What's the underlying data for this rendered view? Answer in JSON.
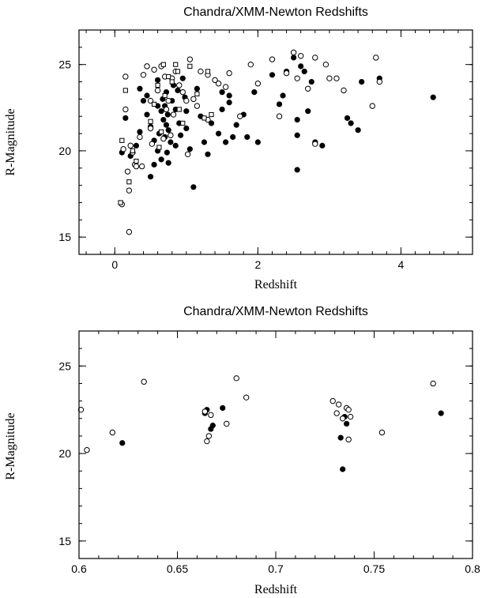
{
  "chart_data": [
    {
      "type": "scatter",
      "title": "Chandra/XMM-Newton Redshifts",
      "xlabel": "Redshift",
      "ylabel": "R-Magnitude",
      "xlim": [
        -0.5,
        5.0
      ],
      "ylim": [
        14.0,
        27.0
      ],
      "x_ticks": [
        0,
        2,
        4
      ],
      "y_ticks": [
        15,
        20,
        25
      ],
      "x_minor_step": 0.2,
      "y_minor_step": 1,
      "grid": false,
      "series": [
        {
          "marker": "filled-circle",
          "points": [
            [
              0.35,
              23.6
            ],
            [
              0.4,
              22.9
            ],
            [
              0.45,
              22.1
            ],
            [
              0.5,
              21.4
            ],
            [
              0.55,
              20.6
            ],
            [
              0.55,
              19.2
            ],
            [
              0.6,
              24.1
            ],
            [
              0.6,
              22.6
            ],
            [
              0.62,
              21.0
            ],
            [
              0.65,
              22.3
            ],
            [
              0.67,
              23.0
            ],
            [
              0.68,
              21.8
            ],
            [
              0.7,
              20.8
            ],
            [
              0.7,
              22.6
            ],
            [
              0.72,
              23.4
            ],
            [
              0.72,
              21.5
            ],
            [
              0.73,
              19.9
            ],
            [
              0.74,
              22.1
            ],
            [
              0.75,
              21.2
            ],
            [
              0.78,
              20.5
            ],
            [
              0.8,
              22.9
            ],
            [
              0.82,
              23.8
            ],
            [
              0.85,
              22.4
            ],
            [
              0.85,
              20.3
            ],
            [
              0.9,
              21.6
            ],
            [
              0.92,
              20.9
            ],
            [
              0.95,
              24.2
            ],
            [
              0.98,
              23.1
            ],
            [
              1.0,
              22.3
            ],
            [
              1.0,
              21.3
            ],
            [
              1.05,
              20.1
            ],
            [
              1.1,
              17.9
            ],
            [
              1.15,
              23.6
            ],
            [
              1.2,
              22.0
            ],
            [
              1.25,
              20.5
            ],
            [
              1.3,
              19.8
            ],
            [
              1.35,
              21.6
            ],
            [
              1.45,
              21.0
            ],
            [
              1.5,
              23.4
            ],
            [
              1.5,
              22.4
            ],
            [
              1.55,
              20.5
            ],
            [
              1.6,
              23.2
            ],
            [
              1.6,
              22.8
            ],
            [
              1.65,
              20.8
            ],
            [
              1.7,
              21.5
            ],
            [
              1.8,
              22.1
            ],
            [
              1.85,
              20.8
            ],
            [
              1.95,
              23.4
            ],
            [
              2.0,
              20.5
            ],
            [
              2.2,
              24.4
            ],
            [
              2.3,
              22.7
            ],
            [
              2.35,
              23.2
            ],
            [
              2.4,
              24.6
            ],
            [
              2.5,
              25.4
            ],
            [
              2.55,
              21.8
            ],
            [
              2.55,
              20.9
            ],
            [
              2.55,
              18.9
            ],
            [
              2.6,
              24.9
            ],
            [
              2.65,
              24.6
            ],
            [
              2.7,
              22.3
            ],
            [
              2.75,
              24.0
            ],
            [
              2.8,
              20.5
            ],
            [
              2.9,
              20.3
            ],
            [
              3.25,
              21.9
            ],
            [
              3.3,
              21.6
            ],
            [
              3.4,
              21.2
            ],
            [
              3.45,
              24.0
            ],
            [
              3.7,
              24.2
            ],
            [
              4.45,
              23.1
            ],
            [
              0.1,
              19.9
            ],
            [
              0.15,
              21.9
            ],
            [
              0.22,
              19.7
            ],
            [
              0.3,
              20.3
            ],
            [
              0.35,
              21.1
            ],
            [
              0.45,
              23.2
            ],
            [
              0.5,
              18.5
            ],
            [
              0.6,
              20.0
            ],
            [
              0.65,
              19.5
            ],
            [
              0.75,
              19.3
            ],
            [
              0.88,
              23.5
            ]
          ]
        },
        {
          "marker": "open-circle",
          "points": [
            [
              0.1,
              16.9
            ],
            [
              0.15,
              22.4
            ],
            [
              0.15,
              24.3
            ],
            [
              0.18,
              18.8
            ],
            [
              0.2,
              17.7
            ],
            [
              0.2,
              15.3
            ],
            [
              0.22,
              20.3
            ],
            [
              0.25,
              19.9
            ],
            [
              0.28,
              19.2
            ],
            [
              0.3,
              19.1
            ],
            [
              0.35,
              20.8
            ],
            [
              0.38,
              19.1
            ],
            [
              0.4,
              24.4
            ],
            [
              0.45,
              24.9
            ],
            [
              0.5,
              22.9
            ],
            [
              0.5,
              21.3
            ],
            [
              0.52,
              20.4
            ],
            [
              0.55,
              24.7
            ],
            [
              0.6,
              23.5
            ],
            [
              0.65,
              24.9
            ],
            [
              0.68,
              20.7
            ],
            [
              0.7,
              24.3
            ],
            [
              0.72,
              22.4
            ],
            [
              0.75,
              22.9
            ],
            [
              0.78,
              20.9
            ],
            [
              0.8,
              24.2
            ],
            [
              0.82,
              22.1
            ],
            [
              0.85,
              24.6
            ],
            [
              0.9,
              23.8
            ],
            [
              0.95,
              23.4
            ],
            [
              1.0,
              22.9
            ],
            [
              1.02,
              19.8
            ],
            [
              1.05,
              25.3
            ],
            [
              1.1,
              23.0
            ],
            [
              1.15,
              22.6
            ],
            [
              1.2,
              24.6
            ],
            [
              1.3,
              21.8
            ],
            [
              1.3,
              24.4
            ],
            [
              1.4,
              24.1
            ],
            [
              1.45,
              23.9
            ],
            [
              1.55,
              23.7
            ],
            [
              1.6,
              24.5
            ],
            [
              1.75,
              22.0
            ],
            [
              1.9,
              25.0
            ],
            [
              2.0,
              23.9
            ],
            [
              2.2,
              25.3
            ],
            [
              2.3,
              22.0
            ],
            [
              2.4,
              24.5
            ],
            [
              2.5,
              25.7
            ],
            [
              2.55,
              24.2
            ],
            [
              2.6,
              25.5
            ],
            [
              2.7,
              23.6
            ],
            [
              2.8,
              25.4
            ],
            [
              2.8,
              20.4
            ],
            [
              2.95,
              25.0
            ],
            [
              3.0,
              24.2
            ],
            [
              3.1,
              24.2
            ],
            [
              3.2,
              23.5
            ],
            [
              3.6,
              22.6
            ],
            [
              3.65,
              25.4
            ],
            [
              3.7,
              24.0
            ],
            [
              0.12,
              20.1
            ]
          ]
        },
        {
          "marker": "open-square",
          "points": [
            [
              0.08,
              17.0
            ],
            [
              0.1,
              20.6
            ],
            [
              0.15,
              23.5
            ],
            [
              0.2,
              18.2
            ],
            [
              0.25,
              20.0
            ],
            [
              0.3,
              19.4
            ],
            [
              0.5,
              21.7
            ],
            [
              0.55,
              22.7
            ],
            [
              0.6,
              23.8
            ],
            [
              0.62,
              20.2
            ],
            [
              0.65,
              21.1
            ],
            [
              0.7,
              23.2
            ],
            [
              0.75,
              24.3
            ],
            [
              0.8,
              24.0
            ],
            [
              0.85,
              25.0
            ],
            [
              0.88,
              24.6
            ],
            [
              0.9,
              22.4
            ],
            [
              0.95,
              21.6
            ],
            [
              1.05,
              24.9
            ],
            [
              1.15,
              23.3
            ],
            [
              1.25,
              21.9
            ],
            [
              1.3,
              24.6
            ],
            [
              1.35,
              22.1
            ],
            [
              0.68,
              25.0
            ]
          ]
        }
      ]
    },
    {
      "type": "scatter",
      "title": "Chandra/XMM-Newton Redshifts",
      "xlabel": "Redshift",
      "ylabel": "R-Magnitude",
      "xlim": [
        0.6,
        0.8
      ],
      "ylim": [
        14.0,
        27.0
      ],
      "x_ticks": [
        0.6,
        0.65,
        0.7,
        0.75,
        0.8
      ],
      "y_ticks": [
        15,
        20,
        25
      ],
      "x_minor_step": 0.01,
      "y_minor_step": 1,
      "grid": false,
      "series": [
        {
          "marker": "filled-circle",
          "points": [
            [
              0.622,
              20.6
            ],
            [
              0.664,
              22.3
            ],
            [
              0.665,
              22.5
            ],
            [
              0.667,
              21.4
            ],
            [
              0.668,
              21.6
            ],
            [
              0.673,
              22.6
            ],
            [
              0.733,
              20.9
            ],
            [
              0.734,
              19.1
            ],
            [
              0.735,
              22.1
            ],
            [
              0.736,
              21.7
            ],
            [
              0.784,
              22.3
            ]
          ]
        },
        {
          "marker": "open-circle",
          "points": [
            [
              0.601,
              22.5
            ],
            [
              0.604,
              20.2
            ],
            [
              0.617,
              21.2
            ],
            [
              0.633,
              24.1
            ],
            [
              0.664,
              22.4
            ],
            [
              0.665,
              20.7
            ],
            [
              0.666,
              21.0
            ],
            [
              0.667,
              22.2
            ],
            [
              0.675,
              21.7
            ],
            [
              0.68,
              24.3
            ],
            [
              0.685,
              23.2
            ],
            [
              0.729,
              23.0
            ],
            [
              0.731,
              22.3
            ],
            [
              0.732,
              22.8
            ],
            [
              0.734,
              22.0
            ],
            [
              0.736,
              22.6
            ],
            [
              0.737,
              22.5
            ],
            [
              0.737,
              20.8
            ],
            [
              0.738,
              22.1
            ],
            [
              0.754,
              21.2
            ],
            [
              0.78,
              24.0
            ]
          ]
        }
      ]
    }
  ]
}
